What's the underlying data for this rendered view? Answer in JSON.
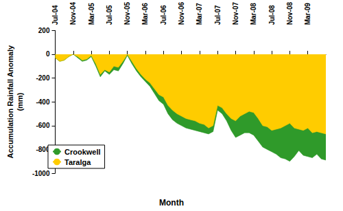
{
  "chart_data": {
    "type": "area",
    "x_label": "Month",
    "y_label": "Accumulation Rainfall Anomaly\n(mm)",
    "categories": [
      "Jul-04",
      null,
      null,
      null,
      "Nov-04",
      null,
      null,
      null,
      "Mar-05",
      null,
      null,
      null,
      "Jul-05",
      null,
      null,
      null,
      "Nov-05",
      null,
      null,
      null,
      "Mar-06",
      null,
      null,
      null,
      "Jul-06",
      null,
      null,
      null,
      "Nov-06",
      null,
      null,
      null,
      "Mar-07",
      null,
      null,
      null,
      "Jul-07",
      null,
      null,
      null,
      "Nov-07",
      null,
      null,
      null,
      "Mar-08",
      null,
      null,
      null,
      "Jul-08",
      null,
      null,
      null,
      "Nov-08",
      null,
      null,
      null,
      "Mar-09",
      null,
      null,
      null,
      null
    ],
    "series": [
      {
        "name": "Crookwell",
        "color": "#2f9a2a",
        "values": [
          -30,
          -60,
          -50,
          -20,
          0,
          -30,
          -60,
          -50,
          -20,
          -100,
          -190,
          -140,
          -170,
          -130,
          -140,
          -80,
          -10,
          -80,
          -140,
          -190,
          -230,
          -270,
          -330,
          -390,
          -420,
          -500,
          -550,
          -580,
          -600,
          -620,
          -630,
          -640,
          -650,
          -660,
          -670,
          -650,
          -470,
          -500,
          -560,
          -640,
          -700,
          -680,
          -660,
          -660,
          -680,
          -730,
          -780,
          -800,
          -820,
          -840,
          -870,
          -880,
          -900,
          -860,
          -810,
          -850,
          -860,
          -870,
          -840,
          -880,
          -890
        ]
      },
      {
        "name": "Taralga",
        "color": "#ffcc00",
        "values": [
          -30,
          -60,
          -50,
          -20,
          0,
          -20,
          -50,
          -40,
          -10,
          -80,
          -170,
          -130,
          -150,
          -100,
          -110,
          -60,
          0,
          -60,
          -120,
          -170,
          -210,
          -240,
          -290,
          -340,
          -360,
          -430,
          -470,
          -500,
          -520,
          -540,
          -550,
          -560,
          -580,
          -590,
          -620,
          -600,
          -430,
          -450,
          -500,
          -540,
          -560,
          -520,
          -500,
          -480,
          -490,
          -540,
          -600,
          -610,
          -640,
          -630,
          -620,
          -600,
          -580,
          -620,
          -630,
          -640,
          -620,
          -660,
          -650,
          -660,
          -670
        ]
      }
    ],
    "ylim": [
      -1000,
      200
    ],
    "yticks": [
      -1000,
      -800,
      -600,
      -400,
      -200,
      0,
      200
    ],
    "grid": false,
    "legend": "lower left"
  }
}
